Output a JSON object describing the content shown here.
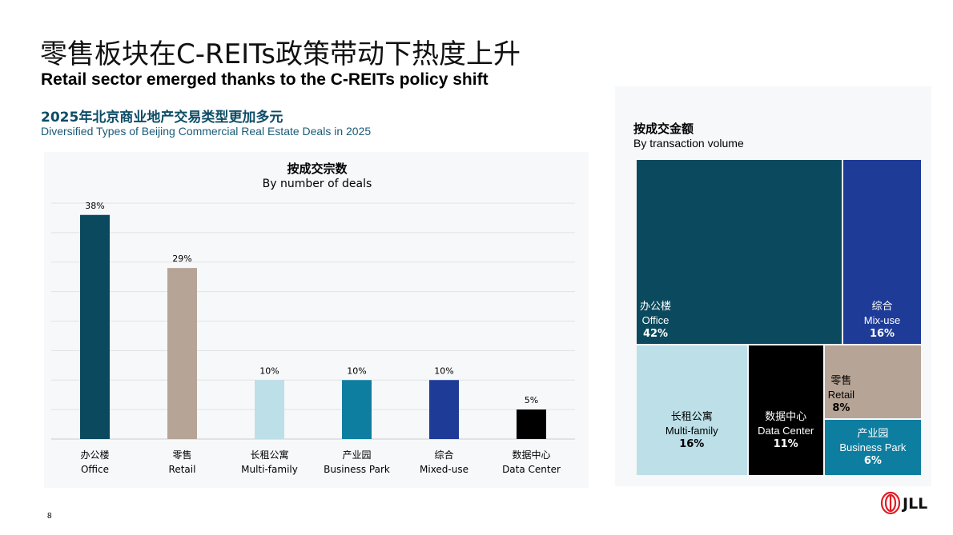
{
  "title_zh": "零售板块在C-REITs政策带动下热度上升",
  "title_en": "Retail sector emerged thanks to the C-REITs policy shift",
  "subtitle_zh": "2025年北京商业地产交易类型更加多元",
  "subtitle_en": "Diversified Types of  Beijing Commercial Real Estate Deals in 2025",
  "page_number": "8",
  "logo_text": "JLL",
  "colors": {
    "office": "#0b4a5e",
    "retail": "#b6a496",
    "multifamily": "#bcdfe8",
    "business_park": "#0e7ea0",
    "mixed_use": "#1e3b97",
    "data_center": "#000000",
    "logo_red": "#e31b23"
  },
  "chart_data": [
    {
      "type": "bar",
      "title": "按成交宗数",
      "subtitle": "By number of deals",
      "categories": [
        {
          "zh": "办公楼",
          "en": "Office"
        },
        {
          "zh": "零售",
          "en": "Retail"
        },
        {
          "zh": "长租公寓",
          "en": "Multi-family"
        },
        {
          "zh": "产业园",
          "en": "Business Park"
        },
        {
          "zh": "综合",
          "en": "Mixed-use"
        },
        {
          "zh": "数据中心",
          "en": "Data Center"
        }
      ],
      "values": [
        38,
        29,
        10,
        10,
        10,
        5
      ],
      "value_labels": [
        "38%",
        "29%",
        "10%",
        "10%",
        "10%",
        "5%"
      ],
      "ylim": [
        0,
        40
      ],
      "grid": true
    },
    {
      "type": "treemap",
      "title": "按成交金额",
      "subtitle": "By transaction volume",
      "items": [
        {
          "zh": "办公楼",
          "en": "Office",
          "value": 42,
          "label": "42%"
        },
        {
          "zh": "综合",
          "en": "Mix-use",
          "value": 16,
          "label": "16%"
        },
        {
          "zh": "长租公寓",
          "en": "Multi-family",
          "value": 16,
          "label": "16%"
        },
        {
          "zh": "数据中心",
          "en": "Data Center",
          "value": 11,
          "label": "11%"
        },
        {
          "zh": "零售",
          "en": "Retail",
          "value": 8,
          "label": "8%"
        },
        {
          "zh": "产业园",
          "en": "Business Park",
          "value": 6,
          "label": "6%"
        }
      ]
    }
  ]
}
